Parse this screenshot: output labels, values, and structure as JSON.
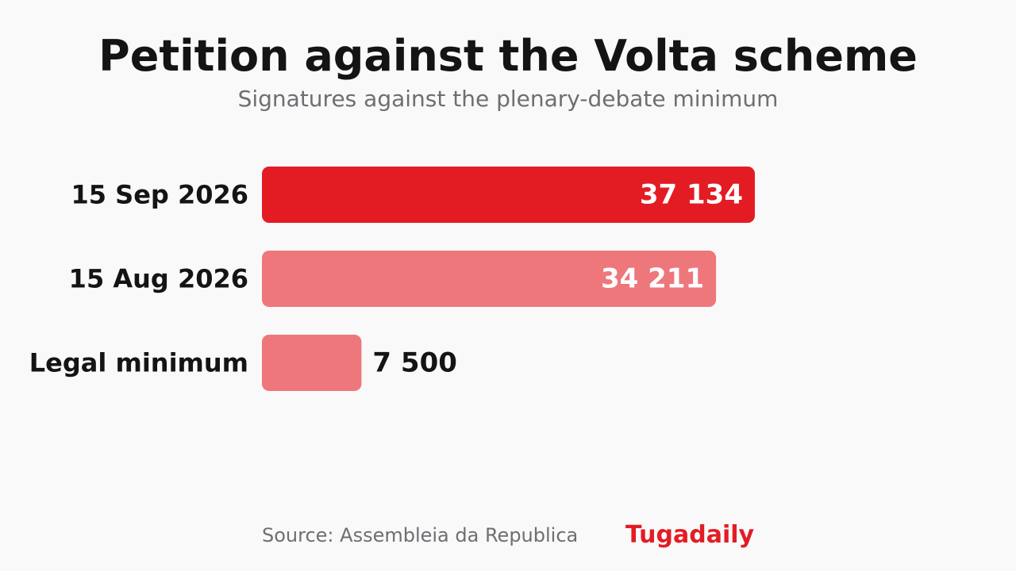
{
  "title": "Petition against the Volta scheme",
  "subtitle": "Signatures against the plenary-debate minimum",
  "source": "Source: Assembleia da Republica",
  "brand": "Tugadaily",
  "colors": {
    "primary_bar": "#e31c24",
    "secondary_bar": "#ee777b",
    "inside_label": "#ffffff",
    "outside_label": "#141414",
    "brand": "#e31c24"
  },
  "chart_data": {
    "type": "bar",
    "orientation": "horizontal",
    "categories": [
      "15 Sep 2026",
      "15 Aug 2026",
      "Legal minimum"
    ],
    "values": [
      37134,
      34211,
      7500
    ],
    "value_labels": [
      "37 134",
      "34 211",
      "7 500"
    ],
    "title": "Petition against the Volta scheme",
    "subtitle": "Signatures against the plenary-debate minimum",
    "xlim": [
      0,
      37134
    ],
    "grid": false,
    "legend": "none"
  }
}
